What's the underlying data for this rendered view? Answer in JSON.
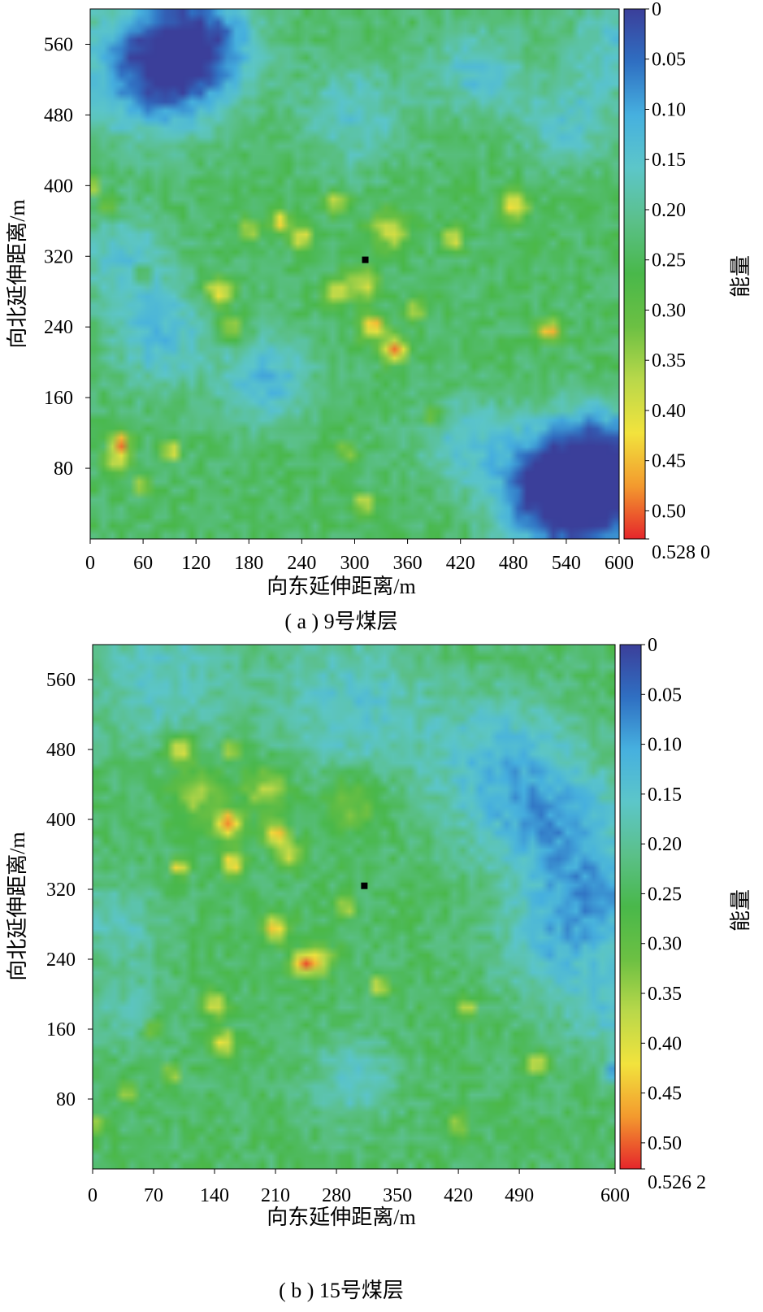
{
  "chart_data": [
    {
      "type": "heatmap",
      "caption": "( a ) 9号煤层",
      "xlabel": "向东延伸距离/m",
      "ylabel": "向北延伸距离/m",
      "xlim": [
        0,
        600
      ],
      "ylim": [
        0,
        600
      ],
      "x_ticks": [
        "0",
        "60",
        "120",
        "180",
        "240",
        "300",
        "360",
        "420",
        "480",
        "540",
        "600"
      ],
      "x_tick_values": [
        0,
        60,
        120,
        180,
        240,
        300,
        360,
        420,
        480,
        540,
        600
      ],
      "y_ticks": [
        "80",
        "160",
        "240",
        "320",
        "400",
        "480",
        "560"
      ],
      "y_tick_values": [
        80,
        160,
        240,
        320,
        400,
        480,
        560
      ],
      "colorbar": {
        "label": "能量",
        "min": 0,
        "max": 0.528,
        "ticks": [
          "0",
          "0.05",
          "0.10",
          "0.15",
          "0.20",
          "0.25",
          "0.30",
          "0.35",
          "0.40",
          "0.45",
          "0.50",
          "0.528 0"
        ],
        "tick_values": [
          0,
          0.05,
          0.1,
          0.15,
          0.2,
          0.25,
          0.3,
          0.35,
          0.4,
          0.45,
          0.5,
          0.528
        ]
      },
      "marker": {
        "x": 312,
        "y": 316
      },
      "features": [
        {
          "x": 120,
          "y": 560,
          "v": 0.03,
          "s": 45
        },
        {
          "x": 65,
          "y": 530,
          "v": 0.06,
          "s": 50
        },
        {
          "x": 545,
          "y": 40,
          "v": 0.05,
          "s": 45
        },
        {
          "x": 520,
          "y": 70,
          "v": 0.08,
          "s": 45
        },
        {
          "x": 580,
          "y": 100,
          "v": 0.1,
          "s": 35
        },
        {
          "x": 600,
          "y": 50,
          "v": 0.1,
          "s": 40
        },
        {
          "x": 80,
          "y": 230,
          "v": 0.13,
          "s": 40
        },
        {
          "x": 200,
          "y": 180,
          "v": 0.12,
          "s": 35
        },
        {
          "x": 40,
          "y": 320,
          "v": 0.15,
          "s": 35
        },
        {
          "x": 300,
          "y": 480,
          "v": 0.15,
          "s": 40
        },
        {
          "x": 440,
          "y": 530,
          "v": 0.14,
          "s": 35
        },
        {
          "x": 540,
          "y": 470,
          "v": 0.15,
          "s": 35
        },
        {
          "x": 600,
          "y": 560,
          "v": 0.15,
          "s": 40
        },
        {
          "x": 420,
          "y": 110,
          "v": 0.15,
          "s": 35
        },
        {
          "x": 30,
          "y": 90,
          "v": 0.39,
          "s": 10
        },
        {
          "x": 35,
          "y": 110,
          "v": 0.5,
          "s": 7
        },
        {
          "x": 92,
          "y": 100,
          "v": 0.5,
          "s": 6
        },
        {
          "x": 58,
          "y": 60,
          "v": 0.38,
          "s": 6
        },
        {
          "x": 145,
          "y": 280,
          "v": 0.44,
          "s": 11
        },
        {
          "x": 160,
          "y": 240,
          "v": 0.42,
          "s": 10
        },
        {
          "x": 180,
          "y": 350,
          "v": 0.42,
          "s": 8
        },
        {
          "x": 215,
          "y": 360,
          "v": 0.44,
          "s": 8
        },
        {
          "x": 240,
          "y": 340,
          "v": 0.43,
          "s": 8
        },
        {
          "x": 280,
          "y": 380,
          "v": 0.42,
          "s": 8
        },
        {
          "x": 320,
          "y": 240,
          "v": 0.48,
          "s": 10
        },
        {
          "x": 345,
          "y": 215,
          "v": 0.5,
          "s": 10
        },
        {
          "x": 340,
          "y": 350,
          "v": 0.41,
          "s": 14
        },
        {
          "x": 280,
          "y": 280,
          "v": 0.38,
          "s": 10
        },
        {
          "x": 310,
          "y": 290,
          "v": 0.4,
          "s": 12
        },
        {
          "x": 410,
          "y": 340,
          "v": 0.44,
          "s": 8
        },
        {
          "x": 480,
          "y": 380,
          "v": 0.45,
          "s": 11
        },
        {
          "x": 520,
          "y": 235,
          "v": 0.48,
          "s": 8
        },
        {
          "x": 370,
          "y": 260,
          "v": 0.38,
          "s": 7
        },
        {
          "x": 20,
          "y": 375,
          "v": 0.38,
          "s": 7
        },
        {
          "x": 0,
          "y": 400,
          "v": 0.45,
          "s": 6
        },
        {
          "x": 60,
          "y": 300,
          "v": 0.38,
          "s": 6
        },
        {
          "x": 310,
          "y": 40,
          "v": 0.4,
          "s": 8
        },
        {
          "x": 390,
          "y": 140,
          "v": 0.38,
          "s": 8
        },
        {
          "x": 290,
          "y": 100,
          "v": 0.37,
          "s": 7
        }
      ]
    },
    {
      "type": "heatmap",
      "caption": "( b ) 15号煤层",
      "xlabel": "向东延伸距离/m",
      "ylabel": "向北延伸距离/m",
      "xlim": [
        0,
        600
      ],
      "ylim": [
        0,
        600
      ],
      "x_ticks": [
        "0",
        "70",
        "140",
        "210",
        "280",
        "350",
        "420",
        "490",
        "600"
      ],
      "x_tick_values": [
        0,
        70,
        140,
        210,
        280,
        350,
        420,
        490,
        600
      ],
      "y_ticks": [
        "80",
        "160",
        "240",
        "320",
        "400",
        "480",
        "560"
      ],
      "y_tick_values": [
        80,
        160,
        240,
        320,
        400,
        480,
        560
      ],
      "colorbar": {
        "label": "能量",
        "min": 0,
        "max": 0.5262,
        "ticks": [
          "0",
          "0.05",
          "0.10",
          "0.15",
          "0.20",
          "0.25",
          "0.30",
          "0.35",
          "0.40",
          "0.45",
          "0.50",
          "0.526 2"
        ],
        "tick_values": [
          0,
          0.05,
          0.1,
          0.15,
          0.2,
          0.25,
          0.3,
          0.35,
          0.4,
          0.45,
          0.5,
          0.5262
        ]
      },
      "marker": {
        "x": 312,
        "y": 324
      },
      "features": [
        {
          "x": 80,
          "y": 560,
          "v": 0.16,
          "s": 60
        },
        {
          "x": 300,
          "y": 530,
          "v": 0.15,
          "s": 60
        },
        {
          "x": 470,
          "y": 460,
          "v": 0.13,
          "s": 60
        },
        {
          "x": 540,
          "y": 380,
          "v": 0.12,
          "s": 55
        },
        {
          "x": 580,
          "y": 300,
          "v": 0.13,
          "s": 40
        },
        {
          "x": 520,
          "y": 250,
          "v": 0.15,
          "s": 40
        },
        {
          "x": 600,
          "y": 180,
          "v": 0.15,
          "s": 40
        },
        {
          "x": 30,
          "y": 280,
          "v": 0.17,
          "s": 35
        },
        {
          "x": 40,
          "y": 180,
          "v": 0.18,
          "s": 30
        },
        {
          "x": 300,
          "y": 100,
          "v": 0.16,
          "s": 35
        },
        {
          "x": 600,
          "y": 110,
          "v": 0.06,
          "s": 8
        },
        {
          "x": 100,
          "y": 480,
          "v": 0.45,
          "s": 12
        },
        {
          "x": 155,
          "y": 395,
          "v": 0.5,
          "s": 11
        },
        {
          "x": 160,
          "y": 350,
          "v": 0.46,
          "s": 9
        },
        {
          "x": 210,
          "y": 385,
          "v": 0.46,
          "s": 9
        },
        {
          "x": 225,
          "y": 360,
          "v": 0.42,
          "s": 10
        },
        {
          "x": 100,
          "y": 345,
          "v": 0.48,
          "s": 6
        },
        {
          "x": 200,
          "y": 435,
          "v": 0.38,
          "s": 18
        },
        {
          "x": 120,
          "y": 430,
          "v": 0.36,
          "s": 20
        },
        {
          "x": 210,
          "y": 275,
          "v": 0.47,
          "s": 10
        },
        {
          "x": 240,
          "y": 235,
          "v": 0.44,
          "s": 10
        },
        {
          "x": 260,
          "y": 240,
          "v": 0.4,
          "s": 12
        },
        {
          "x": 140,
          "y": 190,
          "v": 0.42,
          "s": 10
        },
        {
          "x": 150,
          "y": 145,
          "v": 0.44,
          "s": 9
        },
        {
          "x": 70,
          "y": 160,
          "v": 0.38,
          "s": 8
        },
        {
          "x": 40,
          "y": 90,
          "v": 0.37,
          "s": 8
        },
        {
          "x": 90,
          "y": 110,
          "v": 0.42,
          "s": 6
        },
        {
          "x": 160,
          "y": 480,
          "v": 0.45,
          "s": 6
        },
        {
          "x": 330,
          "y": 210,
          "v": 0.46,
          "s": 6
        },
        {
          "x": 430,
          "y": 185,
          "v": 0.45,
          "s": 6
        },
        {
          "x": 510,
          "y": 120,
          "v": 0.44,
          "s": 8
        },
        {
          "x": 420,
          "y": 50,
          "v": 0.38,
          "s": 8
        },
        {
          "x": 0,
          "y": 50,
          "v": 0.4,
          "s": 8
        },
        {
          "x": 290,
          "y": 300,
          "v": 0.38,
          "s": 8
        },
        {
          "x": 300,
          "y": 420,
          "v": 0.33,
          "s": 25
        }
      ]
    }
  ]
}
